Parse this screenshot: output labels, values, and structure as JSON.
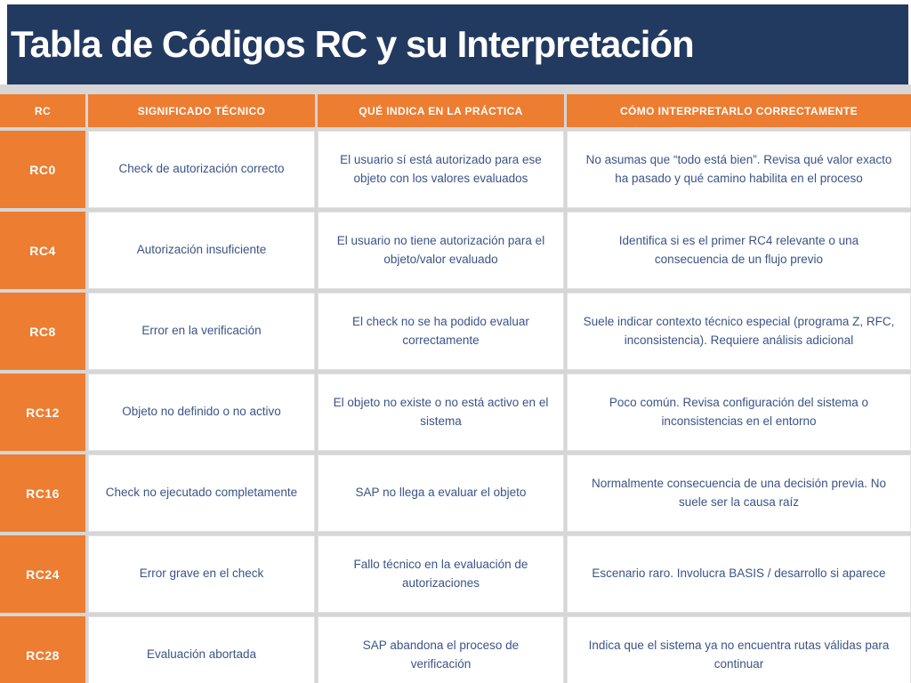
{
  "title": "Tabla de Códigos RC y su Interpretación",
  "colors": {
    "banner_navy": "#233a60",
    "accent_orange": "#ed7d31",
    "grid_gray": "#d6d6d6",
    "body_text_blue": "#3a5486"
  },
  "table": {
    "columns": [
      "RC",
      "SIGNIFICADO TÉCNICO",
      "QUÉ INDICA EN LA PRÁCTICA",
      "CÓMO INTERPRETARLO CORRECTAMENTE"
    ],
    "rows": [
      {
        "code": "RC0",
        "significado": "Check de autorización correcto",
        "practica": "El usuario sí está autorizado para ese objeto con los valores evaluados",
        "interpretacion": "No asumas que “todo está bien”. Revisa qué valor exacto ha pasado y qué camino habilita en el proceso"
      },
      {
        "code": "RC4",
        "significado": "Autorización insuficiente",
        "practica": "El usuario no tiene autorización para el objeto/valor evaluado",
        "interpretacion": "Identifica si es el primer RC4 relevante o una consecuencia de un flujo previo"
      },
      {
        "code": "RC8",
        "significado": "Error en la verificación",
        "practica": "El check no se ha podido evaluar correctamente",
        "interpretacion": "Suele indicar contexto técnico especial (programa Z, RFC, inconsistencia). Requiere análisis adicional"
      },
      {
        "code": "RC12",
        "significado": "Objeto no definido o no activo",
        "practica": "El objeto no existe o no está activo en el sistema",
        "interpretacion": "Poco común. Revisa configuración del sistema o inconsistencias en el entorno"
      },
      {
        "code": "RC16",
        "significado": "Check no ejecutado completamente",
        "practica": "SAP no llega a evaluar el objeto",
        "interpretacion": "Normalmente consecuencia de una decisión previa. No suele ser la causa raíz"
      },
      {
        "code": "RC24",
        "significado": "Error grave en el check",
        "practica": "Fallo técnico en la evaluación de autorizaciones",
        "interpretacion": "Escenario raro. Involucra BASIS / desarrollo si aparece"
      },
      {
        "code": "RC28",
        "significado": "Evaluación abortada",
        "practica": "SAP abandona el proceso de verificación",
        "interpretacion": "Indica que el sistema ya no encuentra rutas válidas para continuar"
      }
    ]
  }
}
